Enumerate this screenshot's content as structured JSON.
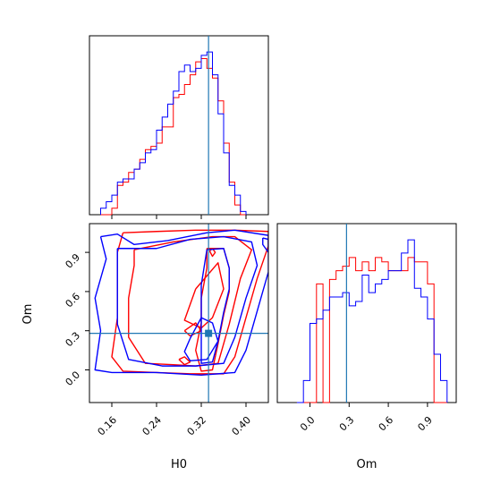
{
  "chart_data": {
    "type": "corner",
    "parameters": [
      "H0",
      "Om"
    ],
    "truths": {
      "H0": 0.333,
      "Om": 0.28
    },
    "colors": {
      "run_a": "#ff0000",
      "run_b": "#0000ff",
      "truth": "#1f77b4"
    },
    "panels": [
      {
        "id": "hist-H0",
        "type": "histogram",
        "x_range": [
          0.12,
          0.44
        ],
        "bins": {
          "start": 0.14,
          "width": 0.01
        },
        "series": [
          {
            "color_key": "run_a",
            "counts": [
              0,
              0,
              2,
              9,
              10,
              13,
              14,
              17,
              20,
              21,
              22,
              27,
              27,
              36,
              37,
              40,
              43,
              47,
              48,
              45,
              42,
              35,
              22,
              10,
              3,
              0
            ]
          },
          {
            "color_key": "run_b",
            "counts": [
              2,
              4,
              6,
              10,
              11,
              11,
              14,
              16,
              19,
              20,
              26,
              30,
              34,
              38,
              44,
              46,
              44,
              45,
              49,
              50,
              43,
              31,
              19,
              9,
              6,
              1
            ]
          }
        ],
        "x_ticks": [
          0.16,
          0.24,
          0.32,
          0.4
        ]
      },
      {
        "id": "contour-H0-Om",
        "type": "contour",
        "x_range": [
          0.12,
          0.44
        ],
        "y_range": [
          -0.25,
          1.12
        ],
        "x_ticks": [
          0.16,
          0.24,
          0.32,
          0.4
        ],
        "x_tick_labels": [
          "0.16",
          "0.24",
          "0.32",
          "0.40"
        ],
        "y_ticks": [
          0.0,
          0.3,
          0.6,
          0.9
        ],
        "y_tick_labels": [
          "0.0",
          "0.3",
          "0.6",
          "0.9"
        ],
        "xlabel": "H0",
        "ylabel": "Om",
        "series": [
          {
            "color_key": "run_a",
            "contours": [
              [
                [
                  0.18,
                  1.05
                ],
                [
                  0.24,
                  1.06
                ],
                [
                  0.31,
                  1.07
                ],
                [
                  0.38,
                  1.07
                ],
                [
                  0.44,
                  1.06
                ],
                [
                  0.44,
                  0.95
                ],
                [
                  0.42,
                  0.7
                ],
                [
                  0.4,
                  0.4
                ],
                [
                  0.38,
                  0.1
                ],
                [
                  0.36,
                  -0.03
                ],
                [
                  0.3,
                  -0.03
                ],
                [
                  0.24,
                  -0.02
                ],
                [
                  0.18,
                  -0.01
                ],
                [
                  0.16,
                  0.1
                ],
                [
                  0.17,
                  0.4
                ],
                [
                  0.17,
                  0.7
                ],
                [
                  0.17,
                  0.9
                ],
                [
                  0.18,
                  1.05
                ]
              ],
              [
                [
                  0.2,
                  0.92
                ],
                [
                  0.27,
                  0.98
                ],
                [
                  0.34,
                  1.02
                ],
                [
                  0.38,
                  1.02
                ],
                [
                  0.41,
                  0.92
                ],
                [
                  0.39,
                  0.7
                ],
                [
                  0.37,
                  0.35
                ],
                [
                  0.35,
                  0.05
                ],
                [
                  0.31,
                  0.03
                ],
                [
                  0.27,
                  0.04
                ],
                [
                  0.22,
                  0.05
                ],
                [
                  0.19,
                  0.25
                ],
                [
                  0.19,
                  0.55
                ],
                [
                  0.2,
                  0.8
                ],
                [
                  0.2,
                  0.92
                ]
              ],
              [
                [
                  0.33,
                  0.93
                ],
                [
                  0.36,
                  0.93
                ],
                [
                  0.37,
                  0.78
                ],
                [
                  0.37,
                  0.6
                ],
                [
                  0.36,
                  0.42
                ],
                [
                  0.35,
                  0.2
                ],
                [
                  0.34,
                  0.0
                ],
                [
                  0.32,
                  -0.01
                ],
                [
                  0.31,
                  0.15
                ],
                [
                  0.32,
                  0.36
                ],
                [
                  0.32,
                  0.55
                ],
                [
                  0.33,
                  0.78
                ],
                [
                  0.33,
                  0.93
                ]
              ],
              [
                [
                  0.31,
                  0.62
                ],
                [
                  0.35,
                  0.82
                ],
                [
                  0.36,
                  0.62
                ],
                [
                  0.34,
                  0.4
                ],
                [
                  0.32,
                  0.32
                ],
                [
                  0.29,
                  0.38
                ],
                [
                  0.31,
                  0.62
                ]
              ],
              [
                [
                  0.335,
                  0.91
                ],
                [
                  0.34,
                  0.93
                ],
                [
                  0.345,
                  0.9
                ],
                [
                  0.34,
                  0.87
                ],
                [
                  0.335,
                  0.91
                ]
              ],
              [
                [
                  0.28,
                  0.08
                ],
                [
                  0.29,
                  0.1
                ],
                [
                  0.3,
                  0.06
                ],
                [
                  0.29,
                  0.04
                ],
                [
                  0.28,
                  0.08
                ]
              ],
              [
                [
                  0.29,
                  0.3
                ],
                [
                  0.31,
                  0.36
                ],
                [
                  0.32,
                  0.3
                ],
                [
                  0.3,
                  0.26
                ],
                [
                  0.29,
                  0.3
                ]
              ]
            ]
          },
          {
            "color_key": "run_b",
            "contours": [
              [
                [
                  0.14,
                  1.02
                ],
                [
                  0.17,
                  1.04
                ],
                [
                  0.2,
                  0.96
                ],
                [
                  0.26,
                  0.99
                ],
                [
                  0.33,
                  1.05
                ],
                [
                  0.38,
                  1.07
                ],
                [
                  0.44,
                  1.03
                ],
                [
                  0.44,
                  0.75
                ],
                [
                  0.42,
                  0.45
                ],
                [
                  0.4,
                  0.15
                ],
                [
                  0.38,
                  -0.02
                ],
                [
                  0.32,
                  -0.04
                ],
                [
                  0.24,
                  -0.02
                ],
                [
                  0.16,
                  -0.02
                ],
                [
                  0.13,
                  0.0
                ],
                [
                  0.14,
                  0.3
                ],
                [
                  0.13,
                  0.55
                ],
                [
                  0.15,
                  0.85
                ],
                [
                  0.14,
                  1.02
                ]
              ],
              [
                [
                  0.17,
                  0.93
                ],
                [
                  0.24,
                  0.93
                ],
                [
                  0.3,
                  1.0
                ],
                [
                  0.36,
                  1.02
                ],
                [
                  0.41,
                  0.98
                ],
                [
                  0.42,
                  0.8
                ],
                [
                  0.4,
                  0.55
                ],
                [
                  0.38,
                  0.25
                ],
                [
                  0.36,
                  0.05
                ],
                [
                  0.31,
                  0.03
                ],
                [
                  0.25,
                  0.03
                ],
                [
                  0.19,
                  0.08
                ],
                [
                  0.17,
                  0.35
                ],
                [
                  0.17,
                  0.65
                ],
                [
                  0.17,
                  0.93
                ]
              ],
              [
                [
                  0.33,
                  0.92
                ],
                [
                  0.36,
                  0.93
                ],
                [
                  0.37,
                  0.78
                ],
                [
                  0.37,
                  0.62
                ],
                [
                  0.36,
                  0.44
                ],
                [
                  0.35,
                  0.22
                ],
                [
                  0.34,
                  0.06
                ],
                [
                  0.32,
                  0.05
                ],
                [
                  0.32,
                  0.25
                ],
                [
                  0.32,
                  0.45
                ],
                [
                  0.32,
                  0.65
                ],
                [
                  0.33,
                  0.92
                ]
              ],
              [
                [
                  0.3,
                  0.24
                ],
                [
                  0.32,
                  0.4
                ],
                [
                  0.34,
                  0.36
                ],
                [
                  0.35,
                  0.22
                ],
                [
                  0.33,
                  0.08
                ],
                [
                  0.3,
                  0.07
                ],
                [
                  0.29,
                  0.14
                ],
                [
                  0.3,
                  0.24
                ]
              ],
              [
                [
                  0.43,
                  1.01
                ],
                [
                  0.44,
                  1.0
                ],
                [
                  0.44,
                  0.9
                ],
                [
                  0.43,
                  0.96
                ],
                [
                  0.43,
                  1.01
                ]
              ]
            ]
          }
        ]
      },
      {
        "id": "hist-Om",
        "type": "histogram",
        "x_range": [
          -0.25,
          1.12
        ],
        "bins": {
          "start": -0.1,
          "width": 0.05
        },
        "series": [
          {
            "color_key": "run_a",
            "counts": [
              0,
              0,
              0,
              27,
              0,
              28,
              30,
              31,
              33,
              30,
              32,
              30,
              33,
              32,
              30,
              30,
              30,
              33,
              32,
              32,
              27,
              0,
              0
            ]
          },
          {
            "color_key": "run_b",
            "counts": [
              0,
              5,
              18,
              19,
              21,
              24,
              24,
              25,
              22,
              23,
              29,
              25,
              27,
              28,
              30,
              30,
              34,
              37,
              26,
              24,
              19,
              11,
              5
            ]
          }
        ],
        "x_ticks": [
          0.0,
          0.3,
          0.6,
          0.9
        ],
        "x_tick_labels": [
          "0.0",
          "0.3",
          "0.6",
          "0.9"
        ],
        "xlabel": "Om"
      }
    ]
  }
}
